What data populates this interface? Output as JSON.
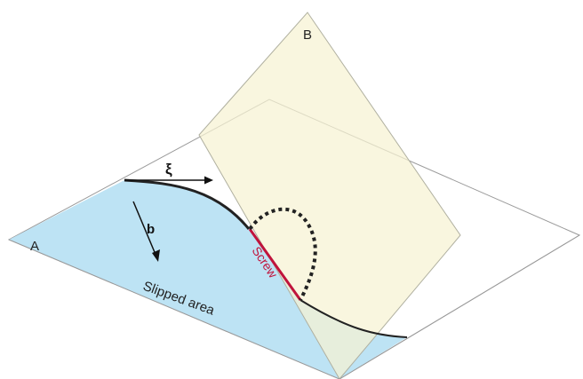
{
  "labels": {
    "plane_a": "A",
    "plane_b": "B",
    "xi": "ξ",
    "b": "b",
    "screw": "Screw",
    "slipped_area": "Slipped area"
  },
  "colors": {
    "slipped_area": "#bde3f4",
    "plane_b": "#f6f2d2",
    "screw_segment": "#c0143c",
    "dislocation_line": "#222222",
    "plane_outline": "#9a9a9a"
  }
}
